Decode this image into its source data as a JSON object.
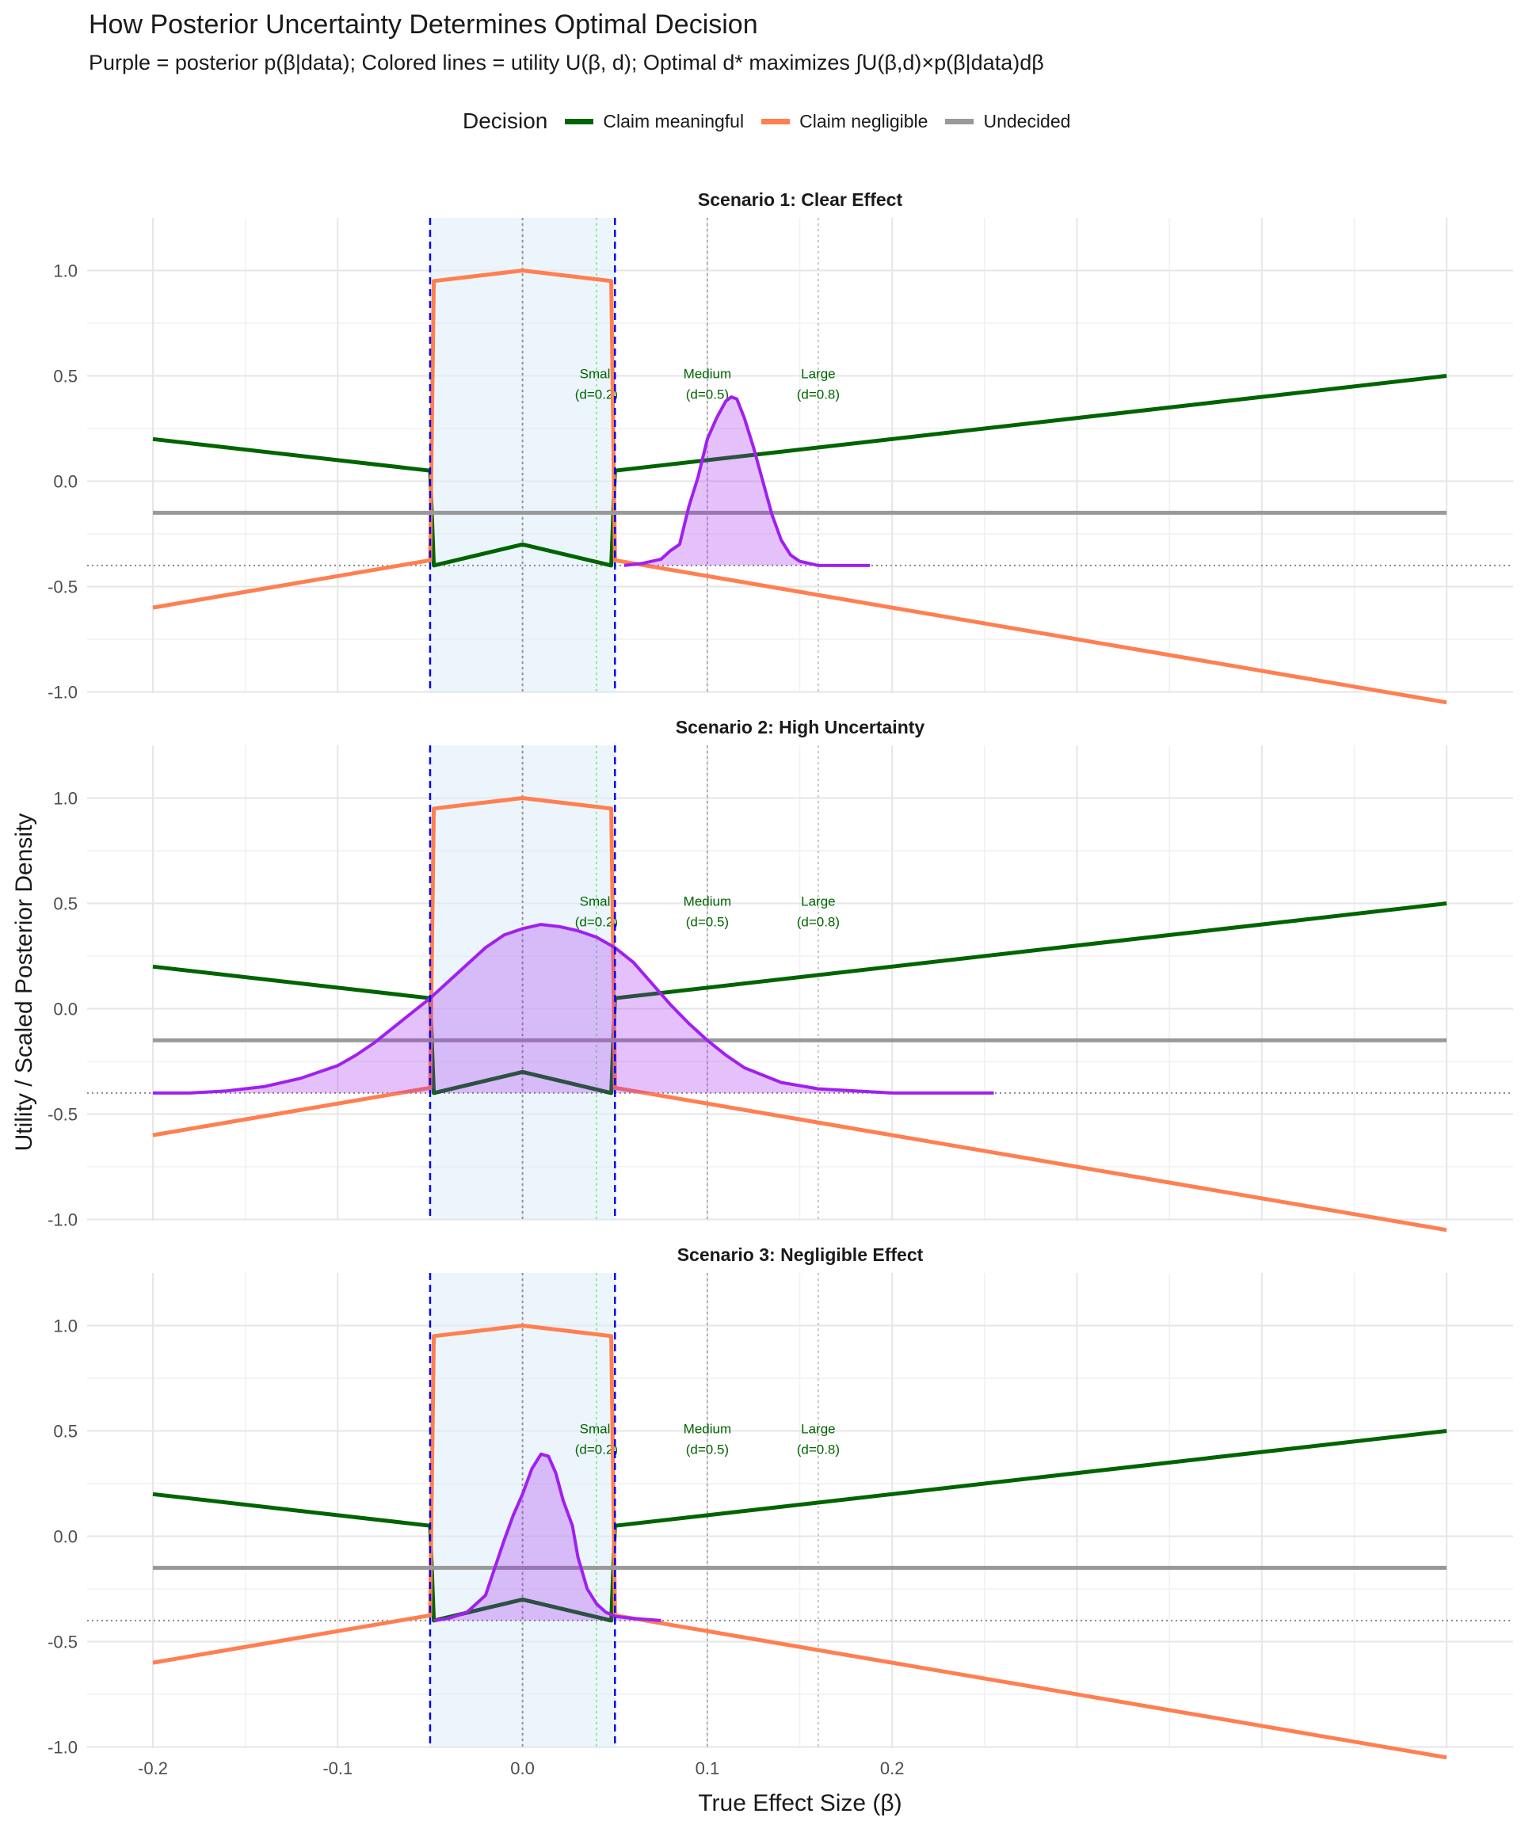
{
  "chart_data": {
    "type": "line",
    "title": "How Posterior Uncertainty Determines Optimal Decision",
    "subtitle": "Purple = posterior p(β|data); Colored lines = utility U(β, d); Optimal d* maximizes ∫U(β,d)×p(β|data)dβ",
    "xlabel": "True Effect Size (β)",
    "ylabel": "Utility / Scaled Posterior Density",
    "xlim": [
      -0.235,
      0.535
    ],
    "ylim": [
      -1.15,
      1.1
    ],
    "x_ticks": [
      -0.2,
      -0.1,
      0.0,
      0.1,
      0.2
    ],
    "x_tick_labels": [
      "-0.2",
      "-0.1",
      "0.0",
      "0.1",
      "0.2"
    ],
    "y_ticks": [
      -1.0,
      -0.5,
      0.0,
      0.5,
      1.0
    ],
    "y_tick_labels": [
      "-1.0",
      "-0.5",
      "0.0",
      "0.5",
      "1.0"
    ],
    "grid": true,
    "legend": {
      "title": "Decision",
      "position": "top",
      "entries": [
        {
          "label": "Claim meaningful",
          "color": "#006400"
        },
        {
          "label": "Claim negligible",
          "color": "#FF7F50"
        },
        {
          "label": "Undecided",
          "color": "#999999"
        }
      ]
    },
    "rope": [
      -0.05,
      0.05
    ],
    "posterior_color": "#A020F0",
    "baseline_y": -0.4,
    "effect_size_lines": [
      {
        "x": 0.04,
        "line1": "Small",
        "line2": "(d=0.2)",
        "color": "#90EE90"
      },
      {
        "x": 0.1,
        "line1": "Medium",
        "line2": "(d=0.5)",
        "color": "#B0B0B0"
      },
      {
        "x": 0.16,
        "line1": "Large",
        "line2": "(d=0.8)",
        "color": "#C8C8C8"
      }
    ],
    "utility_lines": [
      {
        "name": "Claim meaningful",
        "color": "#006400",
        "x": [
          -0.2,
          -0.05,
          -0.048,
          0.0,
          0.048,
          0.05,
          0.5
        ],
        "y": [
          0.2,
          0.05,
          -0.4,
          -0.3,
          -0.4,
          0.05,
          0.5
        ]
      },
      {
        "name": "Claim negligible",
        "color": "#FF7F50",
        "x": [
          -0.2,
          -0.05,
          -0.048,
          0.0,
          0.048,
          0.05,
          0.5
        ],
        "y": [
          -0.6,
          -0.375,
          0.95,
          1.0,
          0.95,
          -0.375,
          -1.05
        ]
      },
      {
        "name": "Undecided",
        "color": "#999999",
        "x": [
          -0.2,
          0.5
        ],
        "y": [
          -0.15,
          -0.15
        ]
      }
    ],
    "panels": [
      {
        "title": "Scenario 1: Clear Effect",
        "posterior": {
          "x": [
            0.055,
            0.065,
            0.075,
            0.08,
            0.085,
            0.09,
            0.095,
            0.1,
            0.105,
            0.11,
            0.113,
            0.116,
            0.12,
            0.125,
            0.13,
            0.135,
            0.14,
            0.145,
            0.15,
            0.16,
            0.17,
            0.18,
            0.188
          ],
          "y": [
            -0.4,
            -0.39,
            -0.37,
            -0.33,
            -0.3,
            -0.12,
            0.02,
            0.2,
            0.3,
            0.38,
            0.4,
            0.39,
            0.3,
            0.16,
            0.0,
            -0.16,
            -0.28,
            -0.35,
            -0.38,
            -0.4,
            -0.4,
            -0.4,
            -0.4
          ]
        }
      },
      {
        "title": "Scenario 2: High Uncertainty",
        "posterior": {
          "x": [
            -0.2,
            -0.18,
            -0.16,
            -0.14,
            -0.12,
            -0.1,
            -0.09,
            -0.08,
            -0.07,
            -0.06,
            -0.05,
            -0.04,
            -0.03,
            -0.02,
            -0.01,
            0.0,
            0.01,
            0.02,
            0.03,
            0.04,
            0.05,
            0.06,
            0.07,
            0.08,
            0.09,
            0.1,
            0.11,
            0.12,
            0.14,
            0.16,
            0.18,
            0.2,
            0.22,
            0.255
          ],
          "y": [
            -0.4,
            -0.4,
            -0.39,
            -0.37,
            -0.33,
            -0.27,
            -0.22,
            -0.16,
            -0.09,
            -0.02,
            0.05,
            0.13,
            0.21,
            0.29,
            0.35,
            0.38,
            0.4,
            0.39,
            0.37,
            0.34,
            0.29,
            0.22,
            0.12,
            0.02,
            -0.07,
            -0.15,
            -0.22,
            -0.28,
            -0.35,
            -0.38,
            -0.39,
            -0.4,
            -0.4,
            -0.4
          ]
        }
      },
      {
        "title": "Scenario 3: Negligible Effect",
        "posterior": {
          "x": [
            -0.048,
            -0.04,
            -0.03,
            -0.02,
            -0.015,
            -0.01,
            -0.005,
            0.0,
            0.005,
            0.01,
            0.014,
            0.018,
            0.022,
            0.027,
            0.03,
            0.035,
            0.04,
            0.045,
            0.05,
            0.06,
            0.075
          ],
          "y": [
            -0.4,
            -0.39,
            -0.36,
            -0.28,
            -0.15,
            -0.02,
            0.1,
            0.2,
            0.32,
            0.39,
            0.38,
            0.3,
            0.17,
            0.05,
            -0.1,
            -0.25,
            -0.32,
            -0.36,
            -0.38,
            -0.39,
            -0.4
          ]
        }
      }
    ]
  }
}
